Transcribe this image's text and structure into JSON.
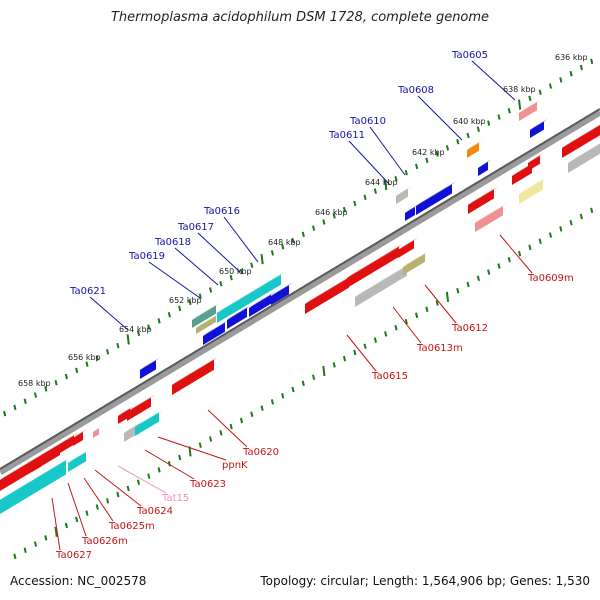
{
  "title": "Thermoplasma acidophilum DSM 1728, complete genome",
  "footer": {
    "accession": "Accession: NC_002578",
    "summary": "Topology: circular; Length: 1,564,906 bp; Genes: 1,530"
  },
  "colors": {
    "backbone": "#777777",
    "tick": "#1a7a1a",
    "label_blue": "#1515a8",
    "label_red": "#c41616",
    "label_pink": "#f090b8",
    "tick_label": "#222222"
  },
  "scale_labels": [
    "636 kbp",
    "638 kbp",
    "640 kbp",
    "642 kbp",
    "644 kbp",
    "646 kbp",
    "648 kbp",
    "650 kbp",
    "652 kbp",
    "654 kbp",
    "656 kbp",
    "658 kbp"
  ],
  "genes_top": [
    {
      "label": "Ta0605",
      "color": "blue"
    },
    {
      "label": "Ta0608",
      "color": "blue"
    },
    {
      "label": "Ta0610",
      "color": "blue"
    },
    {
      "label": "Ta0611",
      "color": "blue"
    },
    {
      "label": "Ta0616",
      "color": "blue"
    },
    {
      "label": "Ta0617",
      "color": "blue"
    },
    {
      "label": "Ta0618",
      "color": "blue"
    },
    {
      "label": "Ta0619",
      "color": "blue"
    },
    {
      "label": "Ta0621",
      "color": "blue"
    }
  ],
  "genes_bottom": [
    {
      "label": "Ta0609m",
      "color": "red"
    },
    {
      "label": "Ta0612",
      "color": "red"
    },
    {
      "label": "Ta0613m",
      "color": "red"
    },
    {
      "label": "Ta0615",
      "color": "red"
    },
    {
      "label": "Ta0620",
      "color": "red"
    },
    {
      "label": "ppnK",
      "color": "red"
    },
    {
      "label": "Ta0623",
      "color": "red"
    },
    {
      "label": "Tat15",
      "color": "pink"
    },
    {
      "label": "Ta0624",
      "color": "red"
    },
    {
      "label": "Ta0625m",
      "color": "red"
    },
    {
      "label": "Ta0626m",
      "color": "red"
    },
    {
      "label": "Ta0627",
      "color": "red"
    }
  ]
}
